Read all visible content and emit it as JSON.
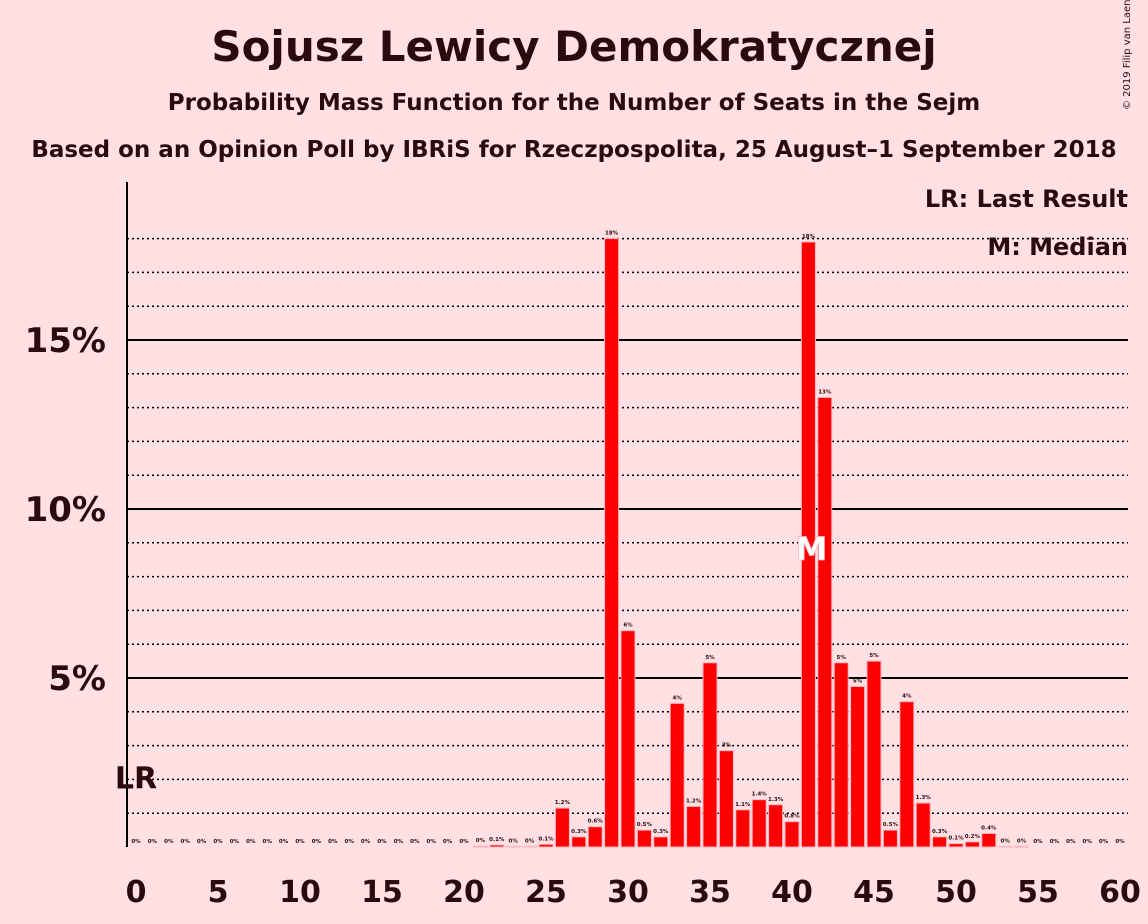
{
  "title": "Sojusz Lewicy Demokratycznej",
  "subtitle": "Probability Mass Function for the Number of Seats in the Sejm",
  "source": "Based on an Opinion Poll by IBRiS for Rzeczpospolita, 25 August–1 September 2018",
  "copyright": "© 2019 Filip van Laenen",
  "legend": {
    "last_result": "LR: Last Result",
    "median": "M: Median"
  },
  "colors": {
    "background": "#ffe0e3",
    "bar": "#ff0000",
    "bar_edge": "#ffb6c1",
    "text": "#2a0a0f"
  },
  "chart_data": {
    "type": "bar",
    "title": "Sojusz Lewicy Demokratycznej",
    "xlabel": "",
    "ylabel": "",
    "ylim": [
      0,
      19.5
    ],
    "xlim": [
      0,
      60
    ],
    "x_ticks": [
      0,
      5,
      10,
      15,
      20,
      25,
      30,
      35,
      40,
      45,
      50,
      55,
      60
    ],
    "y_ticks": [
      {
        "value": 5,
        "label": "5%"
      },
      {
        "value": 10,
        "label": "10%"
      },
      {
        "value": 15,
        "label": "15%"
      }
    ],
    "grid": true,
    "last_result": {
      "seat": 0,
      "label": "LR",
      "value_percent": 2
    },
    "median": {
      "seat": 41,
      "label": "M"
    },
    "bars": [
      {
        "seat": 0,
        "value": 0,
        "label": "0%"
      },
      {
        "seat": 1,
        "value": 0,
        "label": "0%"
      },
      {
        "seat": 2,
        "value": 0,
        "label": "0%"
      },
      {
        "seat": 3,
        "value": 0,
        "label": "0%"
      },
      {
        "seat": 4,
        "value": 0,
        "label": "0%"
      },
      {
        "seat": 5,
        "value": 0,
        "label": "0%"
      },
      {
        "seat": 6,
        "value": 0,
        "label": "0%"
      },
      {
        "seat": 7,
        "value": 0,
        "label": "0%"
      },
      {
        "seat": 8,
        "value": 0,
        "label": "0%"
      },
      {
        "seat": 9,
        "value": 0,
        "label": "0%"
      },
      {
        "seat": 10,
        "value": 0,
        "label": "0%"
      },
      {
        "seat": 11,
        "value": 0,
        "label": "0%"
      },
      {
        "seat": 12,
        "value": 0,
        "label": "0%"
      },
      {
        "seat": 13,
        "value": 0,
        "label": "0%"
      },
      {
        "seat": 14,
        "value": 0,
        "label": "0%"
      },
      {
        "seat": 15,
        "value": 0,
        "label": "0%"
      },
      {
        "seat": 16,
        "value": 0,
        "label": "0%"
      },
      {
        "seat": 17,
        "value": 0,
        "label": "0%"
      },
      {
        "seat": 18,
        "value": 0,
        "label": "0%"
      },
      {
        "seat": 19,
        "value": 0,
        "label": "0%"
      },
      {
        "seat": 20,
        "value": 0,
        "label": "0%"
      },
      {
        "seat": 21,
        "value": 0.03,
        "label": "0%"
      },
      {
        "seat": 22,
        "value": 0.06,
        "label": "0.1%"
      },
      {
        "seat": 23,
        "value": 0.02,
        "label": "0%"
      },
      {
        "seat": 24,
        "value": 0.02,
        "label": "0%"
      },
      {
        "seat": 25,
        "value": 0.08,
        "label": "0.1%"
      },
      {
        "seat": 26,
        "value": 1.15,
        "label": "1.2%"
      },
      {
        "seat": 27,
        "value": 0.3,
        "label": "0.3%"
      },
      {
        "seat": 28,
        "value": 0.6,
        "label": "0.6%"
      },
      {
        "seat": 29,
        "value": 18.0,
        "label": "18%"
      },
      {
        "seat": 30,
        "value": 6.4,
        "label": "6%"
      },
      {
        "seat": 31,
        "value": 0.5,
        "label": "0.5%"
      },
      {
        "seat": 32,
        "value": 0.3,
        "label": "0.3%"
      },
      {
        "seat": 33,
        "value": 4.25,
        "label": "4%"
      },
      {
        "seat": 34,
        "value": 1.2,
        "label": "1.2%"
      },
      {
        "seat": 35,
        "value": 5.45,
        "label": "5%"
      },
      {
        "seat": 36,
        "value": 2.85,
        "label": "3%"
      },
      {
        "seat": 37,
        "value": 1.1,
        "label": "1.1%"
      },
      {
        "seat": 38,
        "value": 1.4,
        "label": "1.4%"
      },
      {
        "seat": 39,
        "value": 1.25,
        "label": "1.3%"
      },
      {
        "seat": 40,
        "value": 0.75,
        "label": "0.8%"
      },
      {
        "seat": 41,
        "value": 17.9,
        "label": "18%"
      },
      {
        "seat": 42,
        "value": 13.3,
        "label": "13%"
      },
      {
        "seat": 43,
        "value": 5.45,
        "label": "5%"
      },
      {
        "seat": 44,
        "value": 4.75,
        "label": "5%"
      },
      {
        "seat": 45,
        "value": 5.5,
        "label": "5%"
      },
      {
        "seat": 46,
        "value": 0.5,
        "label": "0.5%"
      },
      {
        "seat": 47,
        "value": 4.3,
        "label": "4%"
      },
      {
        "seat": 48,
        "value": 1.3,
        "label": "1.3%"
      },
      {
        "seat": 49,
        "value": 0.3,
        "label": "0.3%"
      },
      {
        "seat": 50,
        "value": 0.1,
        "label": "0.1%"
      },
      {
        "seat": 51,
        "value": 0.15,
        "label": "0.2%"
      },
      {
        "seat": 52,
        "value": 0.4,
        "label": "0.4%"
      },
      {
        "seat": 53,
        "value": 0.02,
        "label": "0%"
      },
      {
        "seat": 54,
        "value": 0.02,
        "label": "0%"
      },
      {
        "seat": 55,
        "value": 0,
        "label": "0%"
      },
      {
        "seat": 56,
        "value": 0,
        "label": "0%"
      },
      {
        "seat": 57,
        "value": 0,
        "label": "0%"
      },
      {
        "seat": 58,
        "value": 0,
        "label": "0%"
      },
      {
        "seat": 59,
        "value": 0,
        "label": "0%"
      },
      {
        "seat": 60,
        "value": 0,
        "label": "0%"
      }
    ]
  }
}
